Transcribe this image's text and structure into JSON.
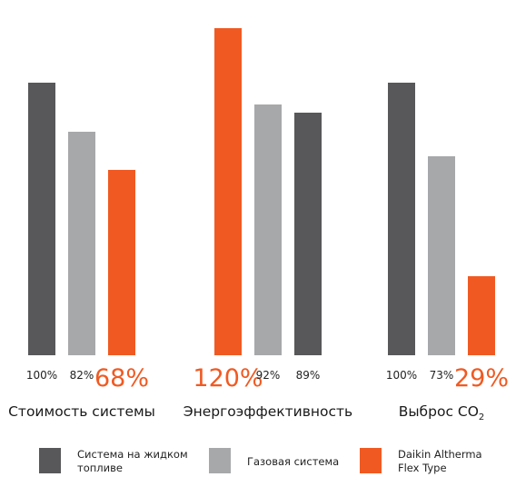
{
  "chart_data": {
    "type": "bar",
    "categories": [
      "Стоимость системы",
      "Энергоэффективность",
      "Выброс CO2"
    ],
    "category_label_parts": [
      {
        "text": "Стоимость системы"
      },
      {
        "text": "Энергоэффективность"
      },
      {
        "text": "Выброс CO",
        "sub": "2"
      }
    ],
    "ylim": [
      0,
      125
    ],
    "series": [
      {
        "name": "Система на жидком топливе",
        "name_lines": [
          "Система на жидком",
          "топливе"
        ],
        "color": "#58585a",
        "values": [
          100,
          89,
          100
        ],
        "labels": [
          "100%",
          "89%",
          "100%"
        ]
      },
      {
        "name": "Газовая система",
        "name_lines": [
          "Газовая система"
        ],
        "color": "#a7a8aa",
        "values": [
          82,
          92,
          73
        ],
        "labels": [
          "82%",
          "92%",
          "73%"
        ]
      },
      {
        "name": "Daikin Altherma Flex Type",
        "name_lines": [
          "Daikin Altherma",
          "Flex Type"
        ],
        "color": "#f05a22",
        "values": [
          68,
          120,
          29
        ],
        "labels": [
          "68%",
          "120%",
          "29%"
        ]
      }
    ],
    "group_order": [
      [
        0,
        1,
        2
      ],
      [
        2,
        1,
        0
      ],
      [
        0,
        1,
        2
      ]
    ],
    "highlight_series": 2,
    "grid": false,
    "legend": "bottom"
  }
}
